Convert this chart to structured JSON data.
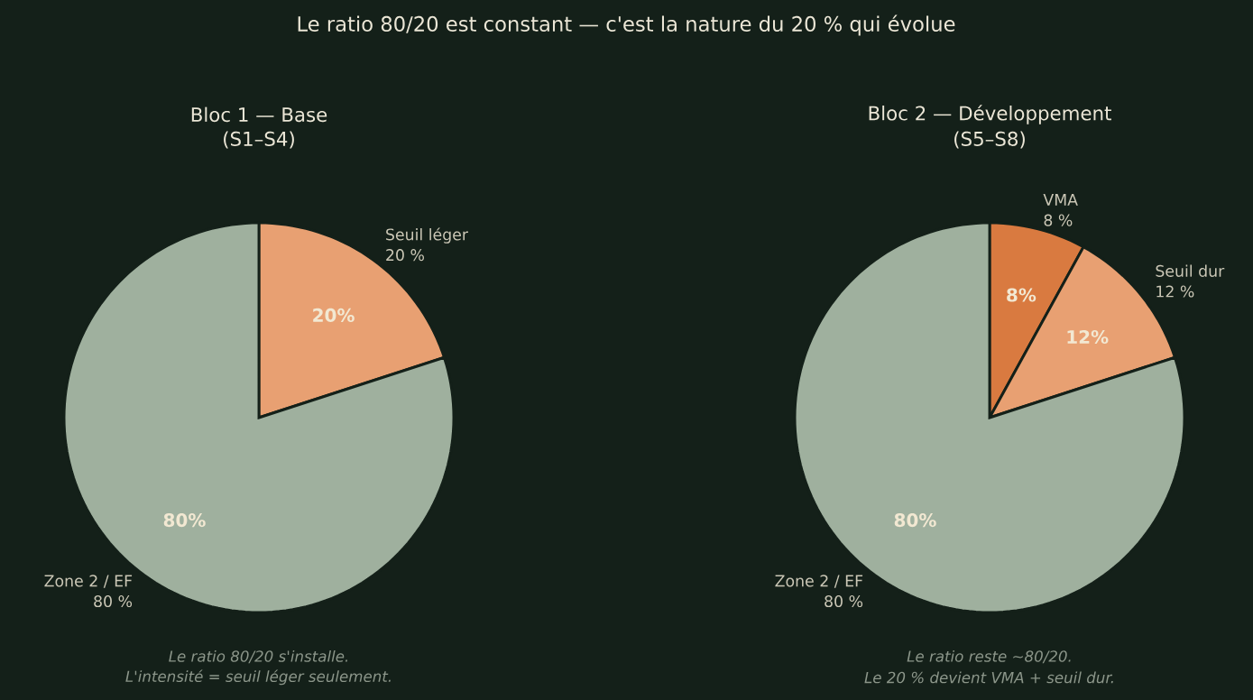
{
  "chart_data": [
    {
      "type": "other",
      "title": "Le ratio 80/20 est constant — c'est la nature du 20 % qui évolue"
    },
    {
      "type": "pie",
      "title": "Bloc 1 — Base",
      "subtitle": "(S1–S4)",
      "categories": [
        "Seuil léger",
        "Zone 2 / EF"
      ],
      "values": [
        20,
        80
      ],
      "colors": [
        "#e8a072",
        "#9fb09e"
      ],
      "value_labels": [
        "20%",
        "80%"
      ],
      "annotations": [
        "20 %",
        "80 %",
        "Le ratio 80/20 s'installe.",
        "L'intensité = seuil léger seulement."
      ]
    },
    {
      "type": "pie",
      "title": "Bloc 2 — Développement",
      "subtitle": "(S5–S8)",
      "categories": [
        "VMA",
        "Seuil dur",
        "Zone 2 / EF"
      ],
      "values": [
        8,
        12,
        80
      ],
      "colors": [
        "#d97a40",
        "#e8a072",
        "#9fb09e"
      ],
      "value_labels": [
        "8%",
        "12%",
        "80%"
      ],
      "annotations": [
        "8 %",
        "12 %",
        "80 %",
        "Le ratio reste ~80/20.",
        "Le 20 % devient VMA + seuil dur."
      ]
    }
  ]
}
